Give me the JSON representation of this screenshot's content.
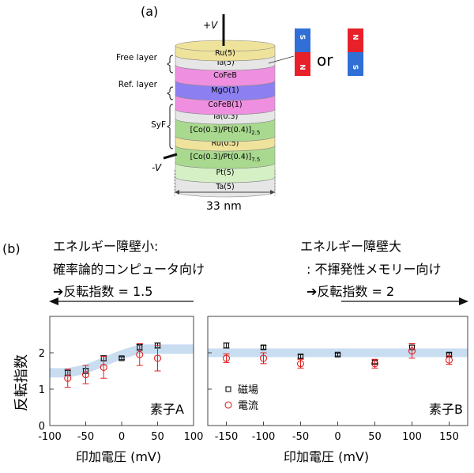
{
  "panel_a": {
    "label": "(a)",
    "plus_v": "+V",
    "minus_v": "-V",
    "width_label": "33 nm",
    "or_label": "or",
    "bracket_labels": [
      "Free layer",
      "Ref. layer",
      "SyF"
    ],
    "layers": [
      {
        "name": "Ru(5)",
        "color": "#efe39b"
      },
      {
        "name": "Ta(5)",
        "color": "#e6e6e6"
      },
      {
        "name": "CoFeB",
        "color": "#ef8fe0"
      },
      {
        "name": "MgO(1)",
        "color": "#8c7ff2"
      },
      {
        "name": "CoFeB(1)",
        "color": "#ef8fe0"
      },
      {
        "name": "Ta(0.3)",
        "color": "#e6e6e6"
      },
      {
        "name": "[Co(0.3)/Pt(0.4)]",
        "sub": "2.5",
        "color": "#a9d98f"
      },
      {
        "name": "Ru(0.5)",
        "color": "#efe39b"
      },
      {
        "name": "[Co(0.3)/Pt(0.4)]",
        "sub": "7.5",
        "color": "#a9d98f"
      },
      {
        "name": "Pt(5)",
        "color": "#d4f0c4"
      },
      {
        "name": "Ta(5)",
        "color": "#e6e6e6"
      }
    ],
    "magnet_s": "S",
    "magnet_n": "N",
    "colors": {
      "magnet_red": "#e8202a",
      "magnet_blue": "#2f6fd6"
    }
  },
  "panel_b": {
    "label": "(b)",
    "left_caption": [
      "エネルギー障壁小:",
      "確率論的コンピュータ向け",
      "➔反転指数 = 1.5"
    ],
    "right_caption": [
      "エネルギー障壁大",
      ": 不揮発性メモリー向け",
      "➔反転指数 = 2"
    ],
    "y_label": "反転指数",
    "x_label": "印加電圧 (mV)",
    "legend": [
      "磁場",
      "電流"
    ],
    "colors": {
      "field": "#111111",
      "current": "#e02020",
      "band": "#bcd4ee"
    }
  },
  "chart_data": [
    {
      "type": "scatter",
      "title": "素子A",
      "xlabel": "印加電圧 (mV)",
      "ylabel": "反転指数",
      "xlim": [
        -100,
        100
      ],
      "ylim": [
        0,
        3
      ],
      "xticks": [
        "-100",
        "-50",
        "0",
        "50",
        "100"
      ],
      "yticks": [
        "0",
        "1",
        "2"
      ],
      "series": [
        {
          "name": "磁場",
          "marker": "square",
          "x": [
            -75,
            -50,
            -25,
            0,
            25,
            50
          ],
          "y": [
            1.45,
            1.5,
            1.85,
            1.85,
            2.15,
            2.2
          ],
          "err": [
            0.07,
            0.07,
            0.07,
            0.04,
            0.08,
            0.07
          ]
        },
        {
          "name": "電流",
          "marker": "circle",
          "x": [
            -75,
            -50,
            -25,
            25,
            50
          ],
          "y": [
            1.3,
            1.4,
            1.6,
            1.95,
            1.85
          ],
          "err": [
            0.25,
            0.25,
            0.3,
            0.3,
            0.35
          ]
        }
      ],
      "band_center": [
        [
          -100,
          1.45
        ],
        [
          -75,
          1.45
        ],
        [
          -50,
          1.55
        ],
        [
          -25,
          1.75
        ],
        [
          0,
          1.95
        ],
        [
          25,
          2.1
        ],
        [
          50,
          2.1
        ],
        [
          100,
          2.1
        ]
      ],
      "band_halfwidth": 0.13
    },
    {
      "type": "scatter",
      "title": "素子B",
      "xlabel": "印加電圧 (mV)",
      "ylabel": "反転指数",
      "xlim": [
        -175,
        175
      ],
      "ylim": [
        0,
        3
      ],
      "xticks": [
        "-150",
        "-100",
        "-50",
        "0",
        "50",
        "100",
        "150"
      ],
      "yticks": [
        "0",
        "1",
        "2"
      ],
      "legend": [
        "磁場",
        "電流"
      ],
      "series": [
        {
          "name": "磁場",
          "marker": "square",
          "x": [
            -150,
            -100,
            -50,
            0,
            50,
            100,
            150
          ],
          "y": [
            2.2,
            2.15,
            1.9,
            1.95,
            1.75,
            2.15,
            1.95
          ],
          "err": [
            0.07,
            0.05,
            0.05,
            0.04,
            0.05,
            0.06,
            0.05
          ]
        },
        {
          "name": "電流",
          "marker": "circle",
          "x": [
            -150,
            -100,
            -50,
            50,
            100,
            150
          ],
          "y": [
            1.85,
            1.85,
            1.7,
            1.7,
            2.05,
            1.8
          ],
          "err": [
            0.12,
            0.15,
            0.12,
            0.12,
            0.2,
            0.12
          ]
        }
      ],
      "band_center": [
        [
          -175,
          2.0
        ],
        [
          175,
          2.0
        ]
      ],
      "band_halfwidth": 0.12
    }
  ]
}
